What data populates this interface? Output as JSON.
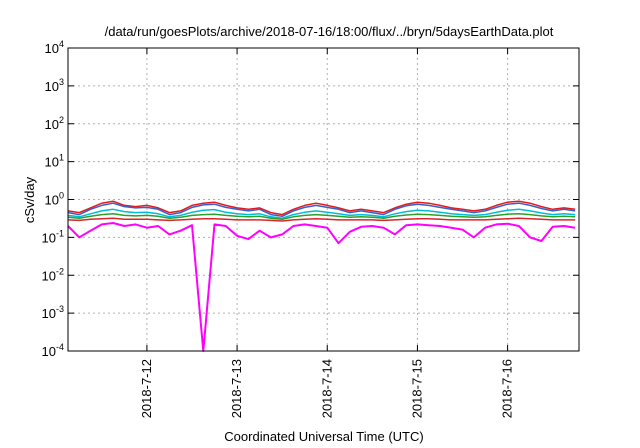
{
  "chart_data": {
    "type": "line",
    "title": "/data/run/goesPlots/archive/2018-07-16/18:00/flux/../bryn/5daysEarthData.plot",
    "xlabel": "Coordinated Universal Time (UTC)",
    "ylabel": "cSv/day",
    "x_ticks": [
      "2018-7-12",
      "2018-7-13",
      "2018-7-14",
      "2018-7-15",
      "2018-7-16"
    ],
    "y_scale": "log",
    "ylim": [
      0.0001,
      10000
    ],
    "y_ticks": [
      {
        "base": "10",
        "exp": "-4",
        "value": 0.0001
      },
      {
        "base": "10",
        "exp": "-3",
        "value": 0.001
      },
      {
        "base": "10",
        "exp": "-2",
        "value": 0.01
      },
      {
        "base": "10",
        "exp": "-1",
        "value": 0.1
      },
      {
        "base": "10",
        "exp": "0",
        "value": 1
      },
      {
        "base": "10",
        "exp": "1",
        "value": 10
      },
      {
        "base": "10",
        "exp": "2",
        "value": 100
      },
      {
        "base": "10",
        "exp": "3",
        "value": 1000
      },
      {
        "base": "10",
        "exp": "4",
        "value": 10000
      }
    ],
    "xlim": [
      "2018-07-11 03:00",
      "2018-07-16 19:00"
    ],
    "grid": true,
    "series": [
      {
        "color": "#e41a1c",
        "start": "2018-07-11 03:00",
        "step_hours": 3,
        "values": [
          0.5,
          0.45,
          0.6,
          0.8,
          0.9,
          0.7,
          0.65,
          0.7,
          0.6,
          0.45,
          0.5,
          0.7,
          0.8,
          0.85,
          0.7,
          0.6,
          0.55,
          0.6,
          0.45,
          0.4,
          0.55,
          0.7,
          0.8,
          0.7,
          0.6,
          0.5,
          0.55,
          0.5,
          0.45,
          0.6,
          0.75,
          0.85,
          0.8,
          0.7,
          0.6,
          0.55,
          0.5,
          0.55,
          0.7,
          0.85,
          0.9,
          0.8,
          0.65,
          0.55,
          0.6,
          0.55
        ]
      },
      {
        "color": "#3a5fcd",
        "start": "2018-07-11 03:00",
        "step_hours": 3,
        "values": [
          0.45,
          0.4,
          0.55,
          0.7,
          0.8,
          0.65,
          0.6,
          0.62,
          0.55,
          0.4,
          0.45,
          0.62,
          0.72,
          0.75,
          0.62,
          0.55,
          0.5,
          0.55,
          0.4,
          0.36,
          0.5,
          0.62,
          0.7,
          0.62,
          0.55,
          0.45,
          0.5,
          0.45,
          0.4,
          0.55,
          0.68,
          0.75,
          0.7,
          0.62,
          0.55,
          0.5,
          0.45,
          0.5,
          0.62,
          0.75,
          0.8,
          0.7,
          0.58,
          0.5,
          0.55,
          0.5
        ]
      },
      {
        "color": "#00bcd4",
        "start": "2018-07-11 03:00",
        "step_hours": 3,
        "values": [
          0.38,
          0.35,
          0.42,
          0.5,
          0.55,
          0.48,
          0.45,
          0.46,
          0.42,
          0.35,
          0.38,
          0.46,
          0.52,
          0.54,
          0.46,
          0.42,
          0.4,
          0.42,
          0.35,
          0.32,
          0.4,
          0.46,
          0.5,
          0.46,
          0.42,
          0.38,
          0.4,
          0.38,
          0.35,
          0.42,
          0.48,
          0.52,
          0.5,
          0.46,
          0.42,
          0.4,
          0.38,
          0.4,
          0.46,
          0.52,
          0.55,
          0.5,
          0.44,
          0.4,
          0.42,
          0.4
        ]
      },
      {
        "color": "#2ca02c",
        "start": "2018-07-11 03:00",
        "step_hours": 3,
        "values": [
          0.34,
          0.32,
          0.36,
          0.4,
          0.42,
          0.38,
          0.37,
          0.38,
          0.36,
          0.32,
          0.34,
          0.38,
          0.4,
          0.41,
          0.38,
          0.36,
          0.35,
          0.36,
          0.32,
          0.3,
          0.35,
          0.38,
          0.4,
          0.38,
          0.36,
          0.34,
          0.35,
          0.34,
          0.32,
          0.36,
          0.39,
          0.41,
          0.4,
          0.38,
          0.36,
          0.35,
          0.34,
          0.35,
          0.38,
          0.41,
          0.42,
          0.4,
          0.37,
          0.35,
          0.36,
          0.35
        ]
      },
      {
        "color": "#d62728",
        "start": "2018-07-11 03:00",
        "step_hours": 3,
        "values": [
          0.29,
          0.28,
          0.3,
          0.31,
          0.32,
          0.3,
          0.3,
          0.3,
          0.29,
          0.28,
          0.29,
          0.3,
          0.31,
          0.31,
          0.3,
          0.29,
          0.29,
          0.29,
          0.28,
          0.27,
          0.29,
          0.3,
          0.31,
          0.3,
          0.29,
          0.29,
          0.29,
          0.29,
          0.28,
          0.29,
          0.3,
          0.31,
          0.31,
          0.3,
          0.29,
          0.29,
          0.29,
          0.29,
          0.3,
          0.31,
          0.32,
          0.31,
          0.3,
          0.29,
          0.29,
          0.29
        ]
      },
      {
        "color": "#ff00ff",
        "start": "2018-07-11 03:00",
        "step_hours": 3,
        "values": [
          0.2,
          0.1,
          0.15,
          0.22,
          0.24,
          0.2,
          0.22,
          0.18,
          0.2,
          0.12,
          0.15,
          0.21,
          0.0001,
          0.22,
          0.2,
          0.11,
          0.09,
          0.15,
          0.1,
          0.12,
          0.2,
          0.22,
          0.2,
          0.18,
          0.07,
          0.14,
          0.19,
          0.2,
          0.18,
          0.12,
          0.21,
          0.22,
          0.21,
          0.2,
          0.18,
          0.16,
          0.1,
          0.18,
          0.22,
          0.23,
          0.2,
          0.1,
          0.08,
          0.19,
          0.2,
          0.18
        ]
      }
    ]
  }
}
